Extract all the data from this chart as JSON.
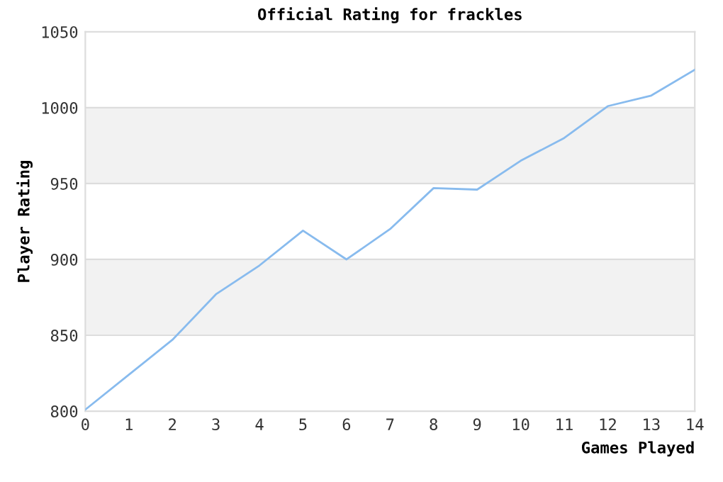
{
  "chart_data": {
    "type": "line",
    "title": "Official Rating for frackles",
    "xlabel": "Games Played",
    "ylabel": "Player Rating",
    "x": [
      0,
      1,
      2,
      3,
      4,
      5,
      6,
      7,
      8,
      9,
      10,
      11,
      12,
      13,
      14
    ],
    "series": [
      {
        "color": "#88bbee",
        "values": [
          801,
          824,
          847,
          877,
          896,
          919,
          900,
          920,
          947,
          946,
          965,
          980,
          1001,
          1008,
          1025
        ]
      }
    ],
    "xlim": [
      0,
      14
    ],
    "xticks": [
      0,
      1,
      2,
      3,
      4,
      5,
      6,
      7,
      8,
      9,
      10,
      11,
      12,
      13,
      14
    ],
    "ylim": [
      800,
      1050
    ],
    "yticks": [
      800,
      850,
      900,
      950,
      1000,
      1050
    ],
    "bands": [
      {
        "axis": "y",
        "from": 850,
        "to": 900,
        "color": "#f2f2f2"
      },
      {
        "axis": "y",
        "from": 950,
        "to": 1000,
        "color": "#f2f2f2"
      }
    ],
    "grid": "y",
    "marker": "none",
    "line_style": "solid",
    "legend": false
  }
}
